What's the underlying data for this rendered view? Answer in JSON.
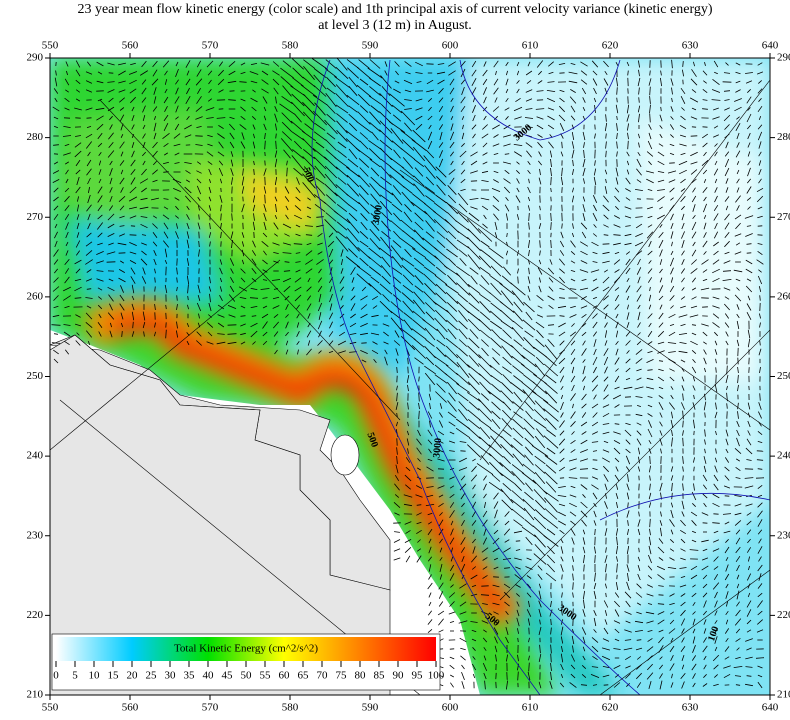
{
  "chart_data": {
    "type": "map",
    "title": "23 year mean flow kinetic energy (color scale) and 1th principal axis of current velocity variance (kinetic energy)",
    "subtitle": "at level 3 (12 m) in August.",
    "xlim": [
      550,
      640
    ],
    "xticks": [
      550,
      560,
      570,
      580,
      590,
      600,
      610,
      620,
      630,
      640
    ],
    "ylim": [
      210,
      290
    ],
    "yticks": [
      210,
      220,
      230,
      240,
      250,
      260,
      270,
      280,
      290
    ],
    "colorbar": {
      "label": "Total Kinetic Energy (cm^2/s^2)",
      "clim": [
        0,
        100
      ],
      "ticks": [
        0,
        5,
        10,
        15,
        20,
        25,
        30,
        35,
        40,
        45,
        50,
        55,
        60,
        65,
        70,
        75,
        80,
        85,
        90,
        95,
        100
      ],
      "colors": [
        "#ffffff",
        "#00ccff",
        "#00e000",
        "#ffff00",
        "#ff8000",
        "#ff0000"
      ]
    },
    "contour_labels": [
      "500",
      "3000",
      "3000",
      "500",
      "3000",
      "500",
      "3000",
      "100"
    ]
  }
}
